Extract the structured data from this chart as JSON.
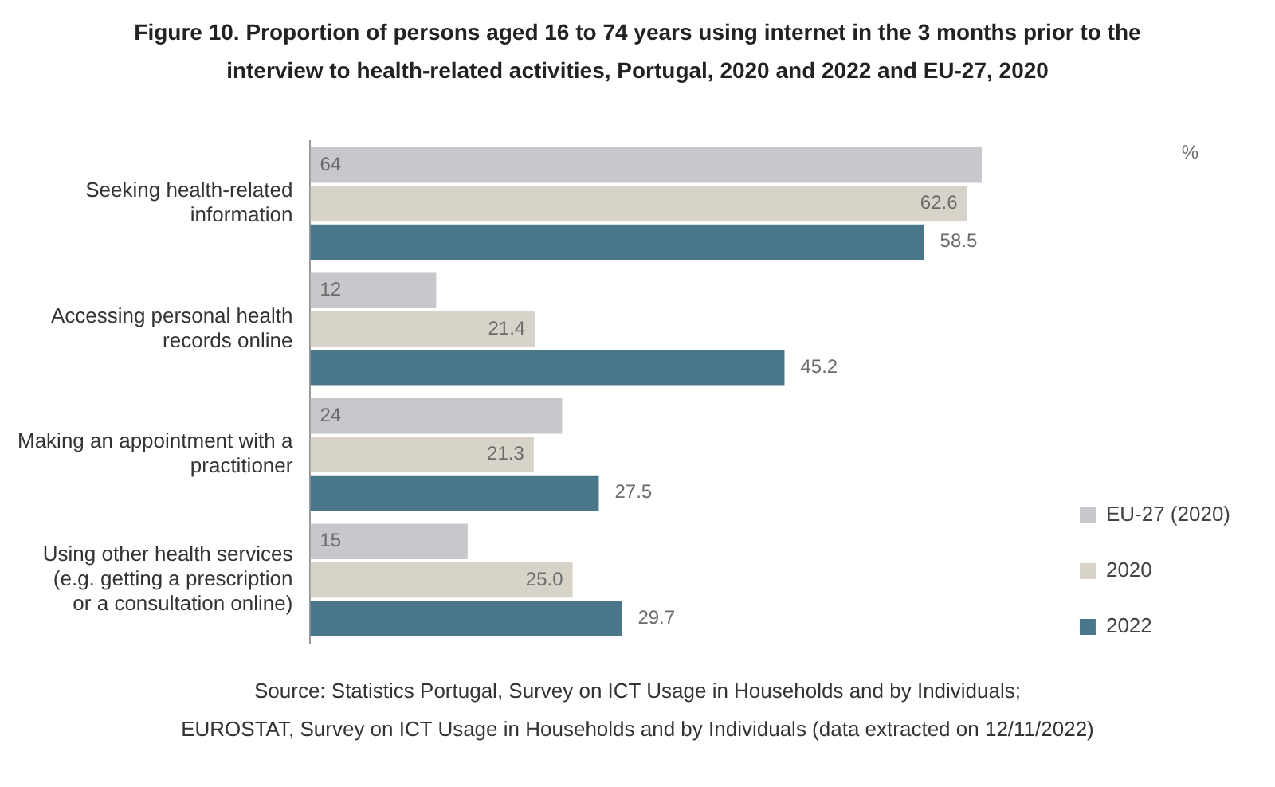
{
  "chart_data": {
    "type": "bar",
    "orientation": "horizontal",
    "title": "Figure 10. Proportion of persons aged 16 to 74 years using internet in the 3 months prior to the interview to health-related activities, Portugal, 2020 and 2022 and EU-27, 2020",
    "categories": [
      "Seeking health-related information",
      "Accessing personal health records online",
      "Making an appointment with a practitioner",
      "Using other health services (e.g. getting a prescription or a consultation online)"
    ],
    "series": [
      {
        "name": "EU-27 (2020)",
        "color": "#c8c8cc",
        "values": [
          64,
          12,
          24,
          15
        ],
        "value_labels": [
          "64",
          "12",
          "24",
          "15"
        ]
      },
      {
        "name": "2020",
        "color": "#d8d3c8",
        "values": [
          62.6,
          21.4,
          21.3,
          25.0
        ],
        "value_labels": [
          "62.6",
          "21.4",
          "21.3",
          "25.0"
        ]
      },
      {
        "name": "2022",
        "color": "#4a7689",
        "values": [
          58.5,
          45.2,
          27.5,
          29.7
        ],
        "value_labels": [
          "58.5",
          "45.2",
          "27.5",
          "29.7"
        ]
      }
    ],
    "tick_labels": "y",
    "legend": "right",
    "grid": false,
    "annotations": [
      "%",
      "Source: Statistics Portugal, Survey on ICT Usage in Households and by Individuals;",
      "EUROSTAT, Survey on ICT Usage in Households and by Individuals (data extracted on 12/11/2022)"
    ]
  }
}
